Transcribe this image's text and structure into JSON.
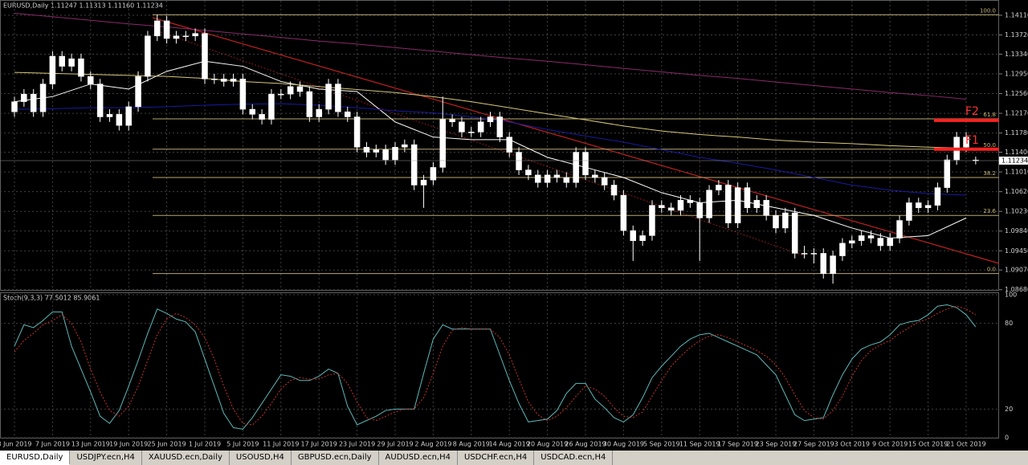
{
  "chart_data": {
    "type": "candlestick",
    "title": "EURUSD,Daily  1.11247 1.11313 1.11160 1.11234",
    "categories": [
      "3 Jun 2019",
      null,
      null,
      null,
      "7 Jun 2019",
      null,
      null,
      null,
      "13 Jun 2019",
      null,
      null,
      null,
      "19 Jun 2019",
      null,
      null,
      null,
      "25 Jun 2019",
      null,
      null,
      null,
      "1 Jul 2019",
      null,
      null,
      null,
      "5 Jul 2019",
      null,
      null,
      null,
      "11 Jul 2019",
      null,
      null,
      null,
      "17 Jul 2019",
      null,
      null,
      null,
      "23 Jul 2019",
      null,
      null,
      null,
      "29 Jul 2019",
      null,
      null,
      null,
      "2 Aug 2019",
      null,
      null,
      null,
      "8 Aug 2019",
      null,
      null,
      null,
      "14 Aug 2019",
      null,
      null,
      null,
      "20 Aug 2019",
      null,
      null,
      null,
      "26 Aug 2019",
      null,
      null,
      null,
      "30 Aug 2019",
      null,
      null,
      null,
      "5 Sep 2019",
      null,
      null,
      null,
      "11 Sep 2019",
      null,
      null,
      null,
      "17 Sep 2019",
      null,
      null,
      null,
      "23 Sep 2019",
      null,
      null,
      null,
      "27 Sep 2019",
      null,
      null,
      null,
      "3 Oct 2019",
      null,
      null,
      null,
      "9 Oct 2019",
      null,
      null,
      null,
      "15 Oct 2019",
      null,
      null,
      null,
      "21 Oct 2019",
      null
    ],
    "open": [
      1.122,
      1.124,
      1.1255,
      1.122,
      1.1275,
      1.133,
      1.131,
      1.1325,
      1.129,
      1.1275,
      1.121,
      1.1215,
      1.1193,
      1.123,
      1.129,
      1.137,
      1.14,
      1.1365,
      1.137,
      1.137,
      1.1375,
      1.1285,
      1.1285,
      1.128,
      1.1285,
      1.1225,
      1.1215,
      1.1205,
      1.1255,
      1.1255,
      1.127,
      1.126,
      1.121,
      1.1225,
      1.1275,
      1.122,
      1.121,
      1.115,
      1.114,
      1.1145,
      1.1125,
      1.115,
      1.1155,
      1.1075,
      1.1085,
      1.111,
      1.1205,
      1.12,
      1.118,
      1.118,
      1.12,
      1.121,
      1.117,
      1.114,
      1.1105,
      1.1095,
      1.108,
      1.1095,
      1.109,
      1.108,
      1.114,
      1.1095,
      1.109,
      1.1075,
      1.1055,
      1.0985,
      1.0965,
      1.0975,
      1.1035,
      1.103,
      1.1025,
      1.1045,
      1.104,
      1.101,
      1.1065,
      1.1075,
      1.1,
      1.107,
      1.103,
      1.1045,
      1.1015,
      1.099,
      1.102,
      1.094,
      1.094,
      1.094,
      1.09,
      1.0935,
      1.096,
      1.0965,
      1.0975,
      1.097,
      1.0955,
      1.097,
      1.1005,
      1.104,
      1.103,
      1.1035,
      1.107,
      1.1125,
      1.117,
      1.11247
    ],
    "high": [
      1.125,
      1.1265,
      1.1265,
      1.1285,
      1.134,
      1.134,
      1.1335,
      1.1335,
      1.13,
      1.1285,
      1.1225,
      1.1225,
      1.124,
      1.13,
      1.138,
      1.1412,
      1.141,
      1.138,
      1.138,
      1.1385,
      1.1385,
      1.1295,
      1.1295,
      1.1295,
      1.1295,
      1.1235,
      1.1225,
      1.1265,
      1.1265,
      1.128,
      1.128,
      1.127,
      1.1235,
      1.1285,
      1.1285,
      1.123,
      1.122,
      1.116,
      1.1155,
      1.1155,
      1.116,
      1.1165,
      1.1165,
      1.1095,
      1.112,
      1.125,
      1.1215,
      1.121,
      1.119,
      1.121,
      1.122,
      1.122,
      1.118,
      1.115,
      1.1115,
      1.1105,
      1.1105,
      1.1105,
      1.11,
      1.115,
      1.115,
      1.1105,
      1.11,
      1.1085,
      1.1065,
      1.0995,
      1.0985,
      1.1045,
      1.1045,
      1.104,
      1.1055,
      1.1055,
      1.105,
      1.1075,
      1.1085,
      1.1085,
      1.108,
      1.108,
      1.1055,
      1.1055,
      1.1025,
      1.103,
      1.103,
      1.0955,
      1.095,
      1.095,
      1.0945,
      1.097,
      1.0975,
      1.0985,
      1.0985,
      1.098,
      1.098,
      1.1015,
      1.105,
      1.105,
      1.1045,
      1.108,
      1.1135,
      1.118,
      1.118,
      1.11313
    ],
    "low": [
      1.121,
      1.123,
      1.121,
      1.121,
      1.1265,
      1.13,
      1.13,
      1.128,
      1.1265,
      1.12,
      1.12,
      1.1183,
      1.1183,
      1.122,
      1.128,
      1.136,
      1.1355,
      1.1355,
      1.136,
      1.136,
      1.1275,
      1.1275,
      1.127,
      1.127,
      1.1215,
      1.1205,
      1.1195,
      1.1195,
      1.1245,
      1.1245,
      1.125,
      1.12,
      1.12,
      1.1215,
      1.121,
      1.12,
      1.114,
      1.113,
      1.113,
      1.1115,
      1.1115,
      1.114,
      1.1065,
      1.103,
      1.1075,
      1.11,
      1.119,
      1.117,
      1.117,
      1.117,
      1.119,
      1.116,
      1.113,
      1.1095,
      1.1085,
      1.107,
      1.107,
      1.108,
      1.107,
      1.107,
      1.1085,
      1.108,
      1.1065,
      1.1045,
      1.0975,
      1.0925,
      1.0955,
      1.0965,
      1.102,
      1.1015,
      1.1015,
      1.103,
      1.0925,
      1.1,
      1.1055,
      1.099,
      1.099,
      1.102,
      1.102,
      1.1005,
      1.098,
      1.098,
      1.093,
      1.093,
      1.092,
      1.089,
      1.088,
      1.0925,
      1.095,
      1.0955,
      1.096,
      1.0945,
      1.0945,
      1.096,
      1.0995,
      1.102,
      1.102,
      1.1025,
      1.106,
      1.1115,
      1.114,
      1.1116
    ],
    "close": [
      1.124,
      1.1255,
      1.122,
      1.1275,
      1.133,
      1.131,
      1.1325,
      1.129,
      1.1275,
      1.121,
      1.1215,
      1.1193,
      1.123,
      1.129,
      1.137,
      1.14,
      1.1365,
      1.137,
      1.137,
      1.1375,
      1.1285,
      1.1285,
      1.128,
      1.1285,
      1.1225,
      1.1215,
      1.1205,
      1.1255,
      1.1255,
      1.127,
      1.126,
      1.121,
      1.1225,
      1.1275,
      1.122,
      1.121,
      1.115,
      1.114,
      1.1145,
      1.1125,
      1.115,
      1.1155,
      1.1075,
      1.1085,
      1.111,
      1.1205,
      1.12,
      1.118,
      1.118,
      1.12,
      1.121,
      1.117,
      1.114,
      1.1105,
      1.1095,
      1.108,
      1.1095,
      1.109,
      1.108,
      1.114,
      1.1095,
      1.109,
      1.1075,
      1.1055,
      1.0985,
      1.0965,
      1.0975,
      1.1035,
      1.103,
      1.1025,
      1.1045,
      1.104,
      1.101,
      1.1065,
      1.1075,
      1.1,
      1.107,
      1.103,
      1.1045,
      1.1015,
      1.099,
      1.102,
      1.094,
      1.094,
      1.094,
      1.09,
      1.0935,
      1.096,
      1.0965,
      1.0975,
      1.097,
      1.0955,
      1.097,
      1.1005,
      1.104,
      1.103,
      1.1035,
      1.107,
      1.1125,
      1.117,
      1.115,
      1.11234
    ],
    "up_color": "#ffffff",
    "down_color": "#ffffff",
    "ylim": [
      1.0866,
      1.1438
    ],
    "yticks": [
      {
        "value": 1.1411,
        "label": "1.14110"
      },
      {
        "value": 1.1372,
        "label": "1.13720"
      },
      {
        "value": 1.1334,
        "label": "1.13340"
      },
      {
        "value": 1.1295,
        "label": "1.12950"
      },
      {
        "value": 1.1256,
        "label": "1.12560"
      },
      {
        "value": 1.1217,
        "label": "1.12170"
      },
      {
        "value": 1.1178,
        "label": "1.11780"
      },
      {
        "value": 1.114,
        "label": "1.11400"
      },
      {
        "value": 1.1101,
        "label": "1.11010"
      },
      {
        "value": 1.1062,
        "label": "1.10620"
      },
      {
        "value": 1.1023,
        "label": "1.10230"
      },
      {
        "value": 1.0984,
        "label": "1.09840"
      },
      {
        "value": 1.0945,
        "label": "1.09450"
      },
      {
        "value": 1.0907,
        "label": "1.09070"
      },
      {
        "value": 1.0868,
        "label": "1.08680"
      }
    ],
    "grid": true,
    "moving_averages": [
      {
        "color": "#ffffff",
        "x": [
          0,
          4,
          8,
          12,
          16,
          20,
          24,
          28,
          32,
          36,
          40,
          44,
          48,
          52,
          56,
          60,
          64,
          68,
          72,
          76,
          80,
          84,
          88,
          92,
          96,
          100
        ],
        "values": [
          1.124,
          1.125,
          1.1275,
          1.1265,
          1.13,
          1.132,
          1.131,
          1.128,
          1.1265,
          1.126,
          1.12,
          1.117,
          1.1165,
          1.1165,
          1.113,
          1.111,
          1.109,
          1.106,
          1.104,
          1.1045,
          1.103,
          1.1015,
          1.099,
          1.097,
          1.0975,
          1.101
        ]
      },
      {
        "color": "#d8c878",
        "x": [
          0,
          4,
          8,
          12,
          16,
          20,
          24,
          28,
          32,
          36,
          40,
          44,
          48,
          52,
          56,
          60,
          64,
          68,
          72,
          76,
          80,
          84,
          88,
          92,
          96,
          100
        ],
        "values": [
          1.1298,
          1.1296,
          1.1294,
          1.1292,
          1.129,
          1.1286,
          1.128,
          1.1276,
          1.127,
          1.1264,
          1.1258,
          1.125,
          1.124,
          1.1228,
          1.1216,
          1.1204,
          1.1192,
          1.1182,
          1.1175,
          1.117,
          1.1164,
          1.116,
          1.1157,
          1.1153,
          1.115,
          1.1148
        ]
      },
      {
        "color": "#1a1aa0",
        "x": [
          0,
          4,
          8,
          12,
          16,
          20,
          24,
          28,
          32,
          36,
          40,
          44,
          48,
          52,
          56,
          60,
          64,
          68,
          72,
          76,
          80,
          84,
          88,
          92,
          96,
          100
        ],
        "values": [
          1.1225,
          1.1226,
          1.1228,
          1.1228,
          1.123,
          1.1233,
          1.1235,
          1.1236,
          1.1233,
          1.1228,
          1.1222,
          1.1218,
          1.121,
          1.12,
          1.1185,
          1.1172,
          1.116,
          1.1145,
          1.113,
          1.1118,
          1.1105,
          1.109,
          1.1075,
          1.1065,
          1.1058,
          1.1055
        ]
      },
      {
        "color": "#8a2a6a",
        "x": [
          0,
          4,
          8,
          12,
          16,
          20,
          24,
          28,
          32,
          36,
          40,
          44,
          48,
          52,
          56,
          60,
          64,
          68,
          72,
          76,
          80,
          84,
          88,
          92,
          96,
          100
        ],
        "values": [
          1.1415,
          1.1408,
          1.1401,
          1.1394,
          1.1388,
          1.1381,
          1.1374,
          1.1367,
          1.136,
          1.1354,
          1.1347,
          1.134,
          1.1333,
          1.1326,
          1.132,
          1.1313,
          1.1306,
          1.1299,
          1.1292,
          1.1286,
          1.1279,
          1.1272,
          1.1265,
          1.1258,
          1.1252,
          1.1245
        ]
      }
    ],
    "fibonacci": [
      {
        "label": "100.0",
        "value": 1.1412
      },
      {
        "label": "61.8",
        "value": 1.1206
      },
      {
        "label": "50.0",
        "value": 1.1146
      },
      {
        "label": "38.2",
        "value": 1.109
      },
      {
        "label": "23.6",
        "value": 1.1015
      },
      {
        "label": "0.0",
        "value": 1.09
      }
    ],
    "annotations": [
      {
        "text": "F2",
        "value": 1.1203
      },
      {
        "text": "F1",
        "value": 1.1146
      }
    ],
    "stochastic": {
      "type": "line",
      "title": "Stoch(9,3,3) 77.5012 85.9061",
      "ylim": [
        0,
        100
      ],
      "yticks": [
        100,
        80,
        20,
        0
      ],
      "series": [
        {
          "color": "#5fb8b8",
          "dash": false,
          "values": [
            64,
            79,
            77,
            82,
            88,
            88,
            64,
            48,
            32,
            15,
            10,
            19,
            36,
            54,
            73,
            90,
            87,
            83,
            81,
            74,
            55,
            36,
            17,
            7,
            6,
            14,
            24,
            34,
            44,
            43,
            40,
            40,
            43,
            48,
            45,
            22,
            9,
            12,
            15,
            19,
            20,
            20,
            20,
            45,
            69,
            79,
            76,
            76,
            76,
            76,
            76,
            58,
            40,
            24,
            11,
            12,
            13,
            19,
            31,
            38,
            38,
            27,
            21,
            14,
            11,
            16,
            28,
            42,
            50,
            57,
            64,
            69,
            72,
            73,
            70,
            67,
            64,
            61,
            58,
            51,
            44,
            30,
            16,
            12,
            13,
            14,
            30,
            44,
            55,
            62,
            65,
            67,
            72,
            79,
            81,
            82,
            86,
            92,
            93,
            91,
            86,
            77.5012
          ]
        },
        {
          "color": "#c83030",
          "dash": true,
          "values": [
            60,
            68,
            73,
            79,
            82,
            86,
            80,
            67,
            48,
            32,
            19,
            15,
            22,
            36,
            54,
            72,
            83,
            87,
            84,
            79,
            70,
            55,
            36,
            20,
            10,
            9,
            15,
            24,
            34,
            40,
            42,
            41,
            41,
            44,
            45,
            38,
            25,
            14,
            12,
            15,
            18,
            20,
            20,
            28,
            45,
            64,
            75,
            77,
            76,
            76,
            76,
            70,
            58,
            41,
            25,
            16,
            12,
            15,
            21,
            29,
            36,
            34,
            29,
            21,
            15,
            14,
            18,
            29,
            40,
            50,
            57,
            63,
            68,
            71,
            72,
            70,
            67,
            64,
            61,
            57,
            51,
            42,
            30,
            19,
            14,
            13,
            19,
            29,
            43,
            54,
            61,
            65,
            68,
            73,
            77,
            81,
            83,
            87,
            90,
            92,
            90,
            85.9061
          ]
        }
      ]
    }
  },
  "tabs": [
    "EURUSD,Daily",
    "USDJPY.ecn,H4",
    "XAUUSD.ecn,Daily",
    "USOUSD,H4",
    "GBPUSD.ecn,Daily",
    "AUDUSD.ecn,H4",
    "USDCHF.ecn,H4",
    "USDCAD.ecn,H4"
  ]
}
